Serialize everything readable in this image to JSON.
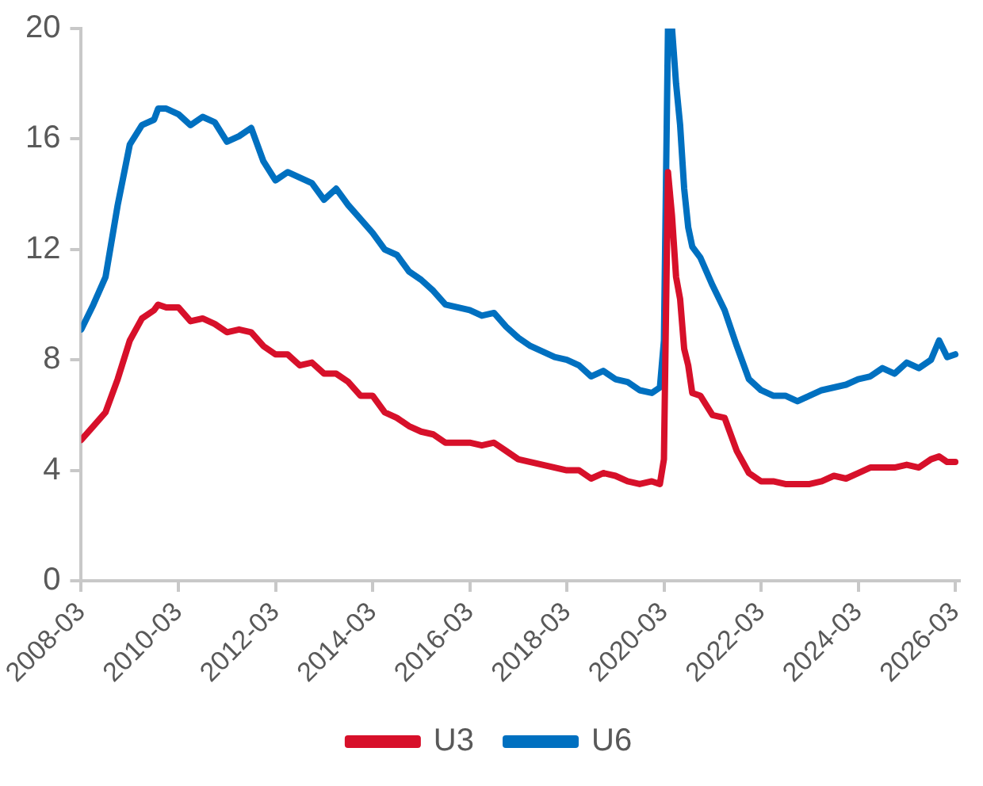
{
  "chart_data": {
    "type": "line",
    "x": [
      "2008-03",
      "2008-06",
      "2008-09",
      "2008-12",
      "2009-03",
      "2009-06",
      "2009-09",
      "2009-10",
      "2009-12",
      "2010-03",
      "2010-06",
      "2010-09",
      "2010-12",
      "2011-03",
      "2011-06",
      "2011-09",
      "2011-12",
      "2012-03",
      "2012-06",
      "2012-09",
      "2012-12",
      "2013-03",
      "2013-06",
      "2013-09",
      "2013-12",
      "2014-03",
      "2014-06",
      "2014-09",
      "2014-12",
      "2015-03",
      "2015-06",
      "2015-09",
      "2015-12",
      "2016-03",
      "2016-06",
      "2016-09",
      "2016-12",
      "2017-03",
      "2017-06",
      "2017-09",
      "2017-12",
      "2018-03",
      "2018-06",
      "2018-09",
      "2018-12",
      "2019-03",
      "2019-06",
      "2019-09",
      "2019-12",
      "2020-02",
      "2020-03",
      "2020-04",
      "2020-05",
      "2020-06",
      "2020-07",
      "2020-08",
      "2020-09",
      "2020-10",
      "2020-12",
      "2021-03",
      "2021-06",
      "2021-09",
      "2021-12",
      "2022-03",
      "2022-06",
      "2022-09",
      "2022-12",
      "2023-03",
      "2023-06",
      "2023-09",
      "2023-12",
      "2024-03",
      "2024-06",
      "2024-09",
      "2024-12",
      "2025-03",
      "2025-06",
      "2025-09",
      "2025-11",
      "2025-12",
      "2026-01",
      "2026-03"
    ],
    "series": [
      {
        "name": "U3",
        "color": "#d7102a",
        "values": [
          5.1,
          5.6,
          6.1,
          7.3,
          8.7,
          9.5,
          9.8,
          10.0,
          9.9,
          9.9,
          9.4,
          9.5,
          9.3,
          9.0,
          9.1,
          9.0,
          8.5,
          8.2,
          8.2,
          7.8,
          7.9,
          7.5,
          7.5,
          7.2,
          6.7,
          6.7,
          6.1,
          5.9,
          5.6,
          5.4,
          5.3,
          5.0,
          5.0,
          5.0,
          4.9,
          5.0,
          4.7,
          4.4,
          4.3,
          4.2,
          4.1,
          4.0,
          4.0,
          3.7,
          3.9,
          3.8,
          3.6,
          3.5,
          3.6,
          3.5,
          4.4,
          14.8,
          13.2,
          11.0,
          10.2,
          8.4,
          7.8,
          6.8,
          6.7,
          6.0,
          5.9,
          4.7,
          3.9,
          3.6,
          3.6,
          3.5,
          3.5,
          3.5,
          3.6,
          3.8,
          3.7,
          3.9,
          4.1,
          4.1,
          4.1,
          4.2,
          4.1,
          4.4,
          4.5,
          4.4,
          4.3,
          4.3
        ]
      },
      {
        "name": "U6",
        "color": "#0070c0",
        "values": [
          9.1,
          10.0,
          11.0,
          13.6,
          15.8,
          16.5,
          16.7,
          17.1,
          17.1,
          16.9,
          16.5,
          16.8,
          16.6,
          15.9,
          16.1,
          16.4,
          15.2,
          14.5,
          14.8,
          14.6,
          14.4,
          13.8,
          14.2,
          13.6,
          13.1,
          12.6,
          12.0,
          11.8,
          11.2,
          10.9,
          10.5,
          10.0,
          9.9,
          9.8,
          9.6,
          9.7,
          9.2,
          8.8,
          8.5,
          8.3,
          8.1,
          8.0,
          7.8,
          7.4,
          7.6,
          7.3,
          7.2,
          6.9,
          6.8,
          7.0,
          8.7,
          20,
          20,
          18.0,
          16.5,
          14.2,
          12.8,
          12.1,
          11.7,
          10.7,
          9.8,
          8.5,
          7.3,
          6.9,
          6.7,
          6.7,
          6.5,
          6.7,
          6.9,
          7.0,
          7.1,
          7.3,
          7.4,
          7.7,
          7.5,
          7.9,
          7.7,
          8.0,
          8.7,
          8.4,
          8.1,
          8.2
        ]
      }
    ],
    "xlim": [
      "2008-03",
      "2026-04"
    ],
    "xticks": [
      "2008-03",
      "2010-03",
      "2012-03",
      "2014-03",
      "2016-03",
      "2018-03",
      "2020-03",
      "2022-03",
      "2024-03",
      "2026-03"
    ],
    "ylim": [
      0,
      20
    ],
    "yticks": [
      0,
      4,
      8,
      12,
      16,
      20
    ],
    "grid": false,
    "legend": "bottom",
    "marker": "none",
    "line_style": "solid"
  }
}
